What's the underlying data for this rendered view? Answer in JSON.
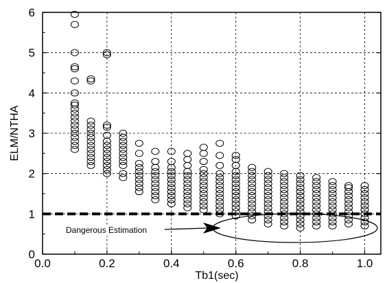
{
  "chart_data": {
    "type": "scatter",
    "title": "",
    "xlabel": "Tb1(sec)",
    "ylabel": "ELM/NTHA",
    "xlim": [
      0.0,
      1.05
    ],
    "ylim": [
      0,
      6
    ],
    "xticks": [
      0.0,
      0.2,
      0.4,
      0.6,
      0.8,
      1.0
    ],
    "xtick_labels": [
      "0.0",
      "0.2",
      "0.4",
      "0.6",
      "0.8",
      "1.0"
    ],
    "yticks": [
      0,
      1,
      2,
      3,
      4,
      5,
      6
    ],
    "ytick_labels": [
      "0",
      "1",
      "2",
      "3",
      "4",
      "5",
      "6"
    ],
    "grid": true,
    "grid_style": "dashed",
    "marker": "open-circle",
    "threshold_line": {
      "y": 1.0,
      "style": "thick-dashed"
    },
    "annotation": {
      "text": "Dangerous Estimation",
      "target": "points below y = 1"
    },
    "series": [
      {
        "points": [
          {
            "x": 0.1,
            "y": [
              2.6,
              2.7,
              2.8,
              2.9,
              3.0,
              3.1,
              3.2,
              3.3,
              3.4,
              3.5,
              3.6,
              3.7,
              3.75,
              4.0,
              4.3,
              4.6,
              4.65,
              5.0,
              5.7,
              5.95
            ]
          },
          {
            "x": 0.15,
            "y": [
              2.2,
              2.3,
              2.4,
              2.5,
              2.6,
              2.7,
              2.8,
              2.9,
              3.0,
              3.1,
              3.2,
              3.3,
              4.3,
              4.35
            ]
          },
          {
            "x": 0.2,
            "y": [
              2.0,
              2.1,
              2.2,
              2.3,
              2.4,
              2.5,
              2.6,
              2.7,
              2.8,
              2.95,
              3.15,
              3.2,
              4.95,
              5.0
            ]
          },
          {
            "x": 0.25,
            "y": [
              1.9,
              2.0,
              2.2,
              2.3,
              2.4,
              2.5,
              2.6,
              2.7,
              2.8,
              2.9,
              3.0
            ]
          },
          {
            "x": 0.3,
            "y": [
              1.55,
              1.65,
              1.75,
              1.85,
              1.95,
              2.05,
              2.15,
              2.25,
              2.5,
              2.75
            ]
          },
          {
            "x": 0.35,
            "y": [
              1.35,
              1.45,
              1.55,
              1.65,
              1.75,
              1.85,
              1.95,
              2.05,
              2.15,
              2.3,
              2.55
            ]
          },
          {
            "x": 0.4,
            "y": [
              1.25,
              1.35,
              1.45,
              1.55,
              1.65,
              1.75,
              1.85,
              1.95,
              2.05,
              2.15,
              2.3,
              2.55
            ]
          },
          {
            "x": 0.45,
            "y": [
              1.15,
              1.25,
              1.35,
              1.45,
              1.55,
              1.65,
              1.75,
              1.85,
              1.95,
              2.05,
              2.2,
              2.35,
              2.5
            ]
          },
          {
            "x": 0.5,
            "y": [
              1.1,
              1.2,
              1.3,
              1.4,
              1.5,
              1.6,
              1.7,
              1.8,
              1.9,
              2.0,
              2.1,
              2.3,
              2.5,
              2.65
            ]
          },
          {
            "x": 0.55,
            "y": [
              1.0,
              1.1,
              1.2,
              1.3,
              1.4,
              1.5,
              1.6,
              1.7,
              1.8,
              1.9,
              2.0,
              2.2,
              2.45,
              2.75
            ]
          },
          {
            "x": 0.6,
            "y": [
              0.95,
              1.05,
              1.15,
              1.25,
              1.35,
              1.45,
              1.55,
              1.65,
              1.75,
              1.85,
              1.95,
              2.05,
              2.2,
              2.35,
              2.45
            ]
          },
          {
            "x": 0.65,
            "y": [
              0.85,
              0.95,
              1.05,
              1.15,
              1.25,
              1.35,
              1.45,
              1.55,
              1.65,
              1.75,
              1.85,
              1.95,
              2.05,
              2.15
            ]
          },
          {
            "x": 0.7,
            "y": [
              0.75,
              0.85,
              0.95,
              1.05,
              1.15,
              1.25,
              1.35,
              1.45,
              1.55,
              1.65,
              1.75,
              1.85,
              1.95,
              2.05
            ]
          },
          {
            "x": 0.75,
            "y": [
              0.7,
              0.8,
              0.9,
              1.0,
              1.1,
              1.2,
              1.3,
              1.4,
              1.5,
              1.6,
              1.7,
              1.8,
              1.9,
              2.0
            ]
          },
          {
            "x": 0.8,
            "y": [
              0.65,
              0.75,
              0.85,
              0.95,
              1.05,
              1.15,
              1.25,
              1.35,
              1.45,
              1.55,
              1.65,
              1.75,
              1.85,
              1.95
            ]
          },
          {
            "x": 0.85,
            "y": [
              0.7,
              0.8,
              0.9,
              1.0,
              1.1,
              1.2,
              1.3,
              1.4,
              1.5,
              1.6,
              1.7,
              1.8,
              1.9
            ]
          },
          {
            "x": 0.9,
            "y": [
              0.7,
              0.8,
              0.9,
              1.0,
              1.1,
              1.2,
              1.3,
              1.4,
              1.5,
              1.6,
              1.7,
              1.8
            ]
          },
          {
            "x": 0.95,
            "y": [
              0.75,
              0.85,
              0.95,
              1.05,
              1.15,
              1.25,
              1.35,
              1.45,
              1.55,
              1.65,
              1.7
            ]
          },
          {
            "x": 1.0,
            "y": [
              0.7,
              0.8,
              0.9,
              1.0,
              1.1,
              1.2,
              1.3,
              1.4,
              1.5,
              1.6,
              1.7
            ]
          }
        ]
      }
    ]
  }
}
